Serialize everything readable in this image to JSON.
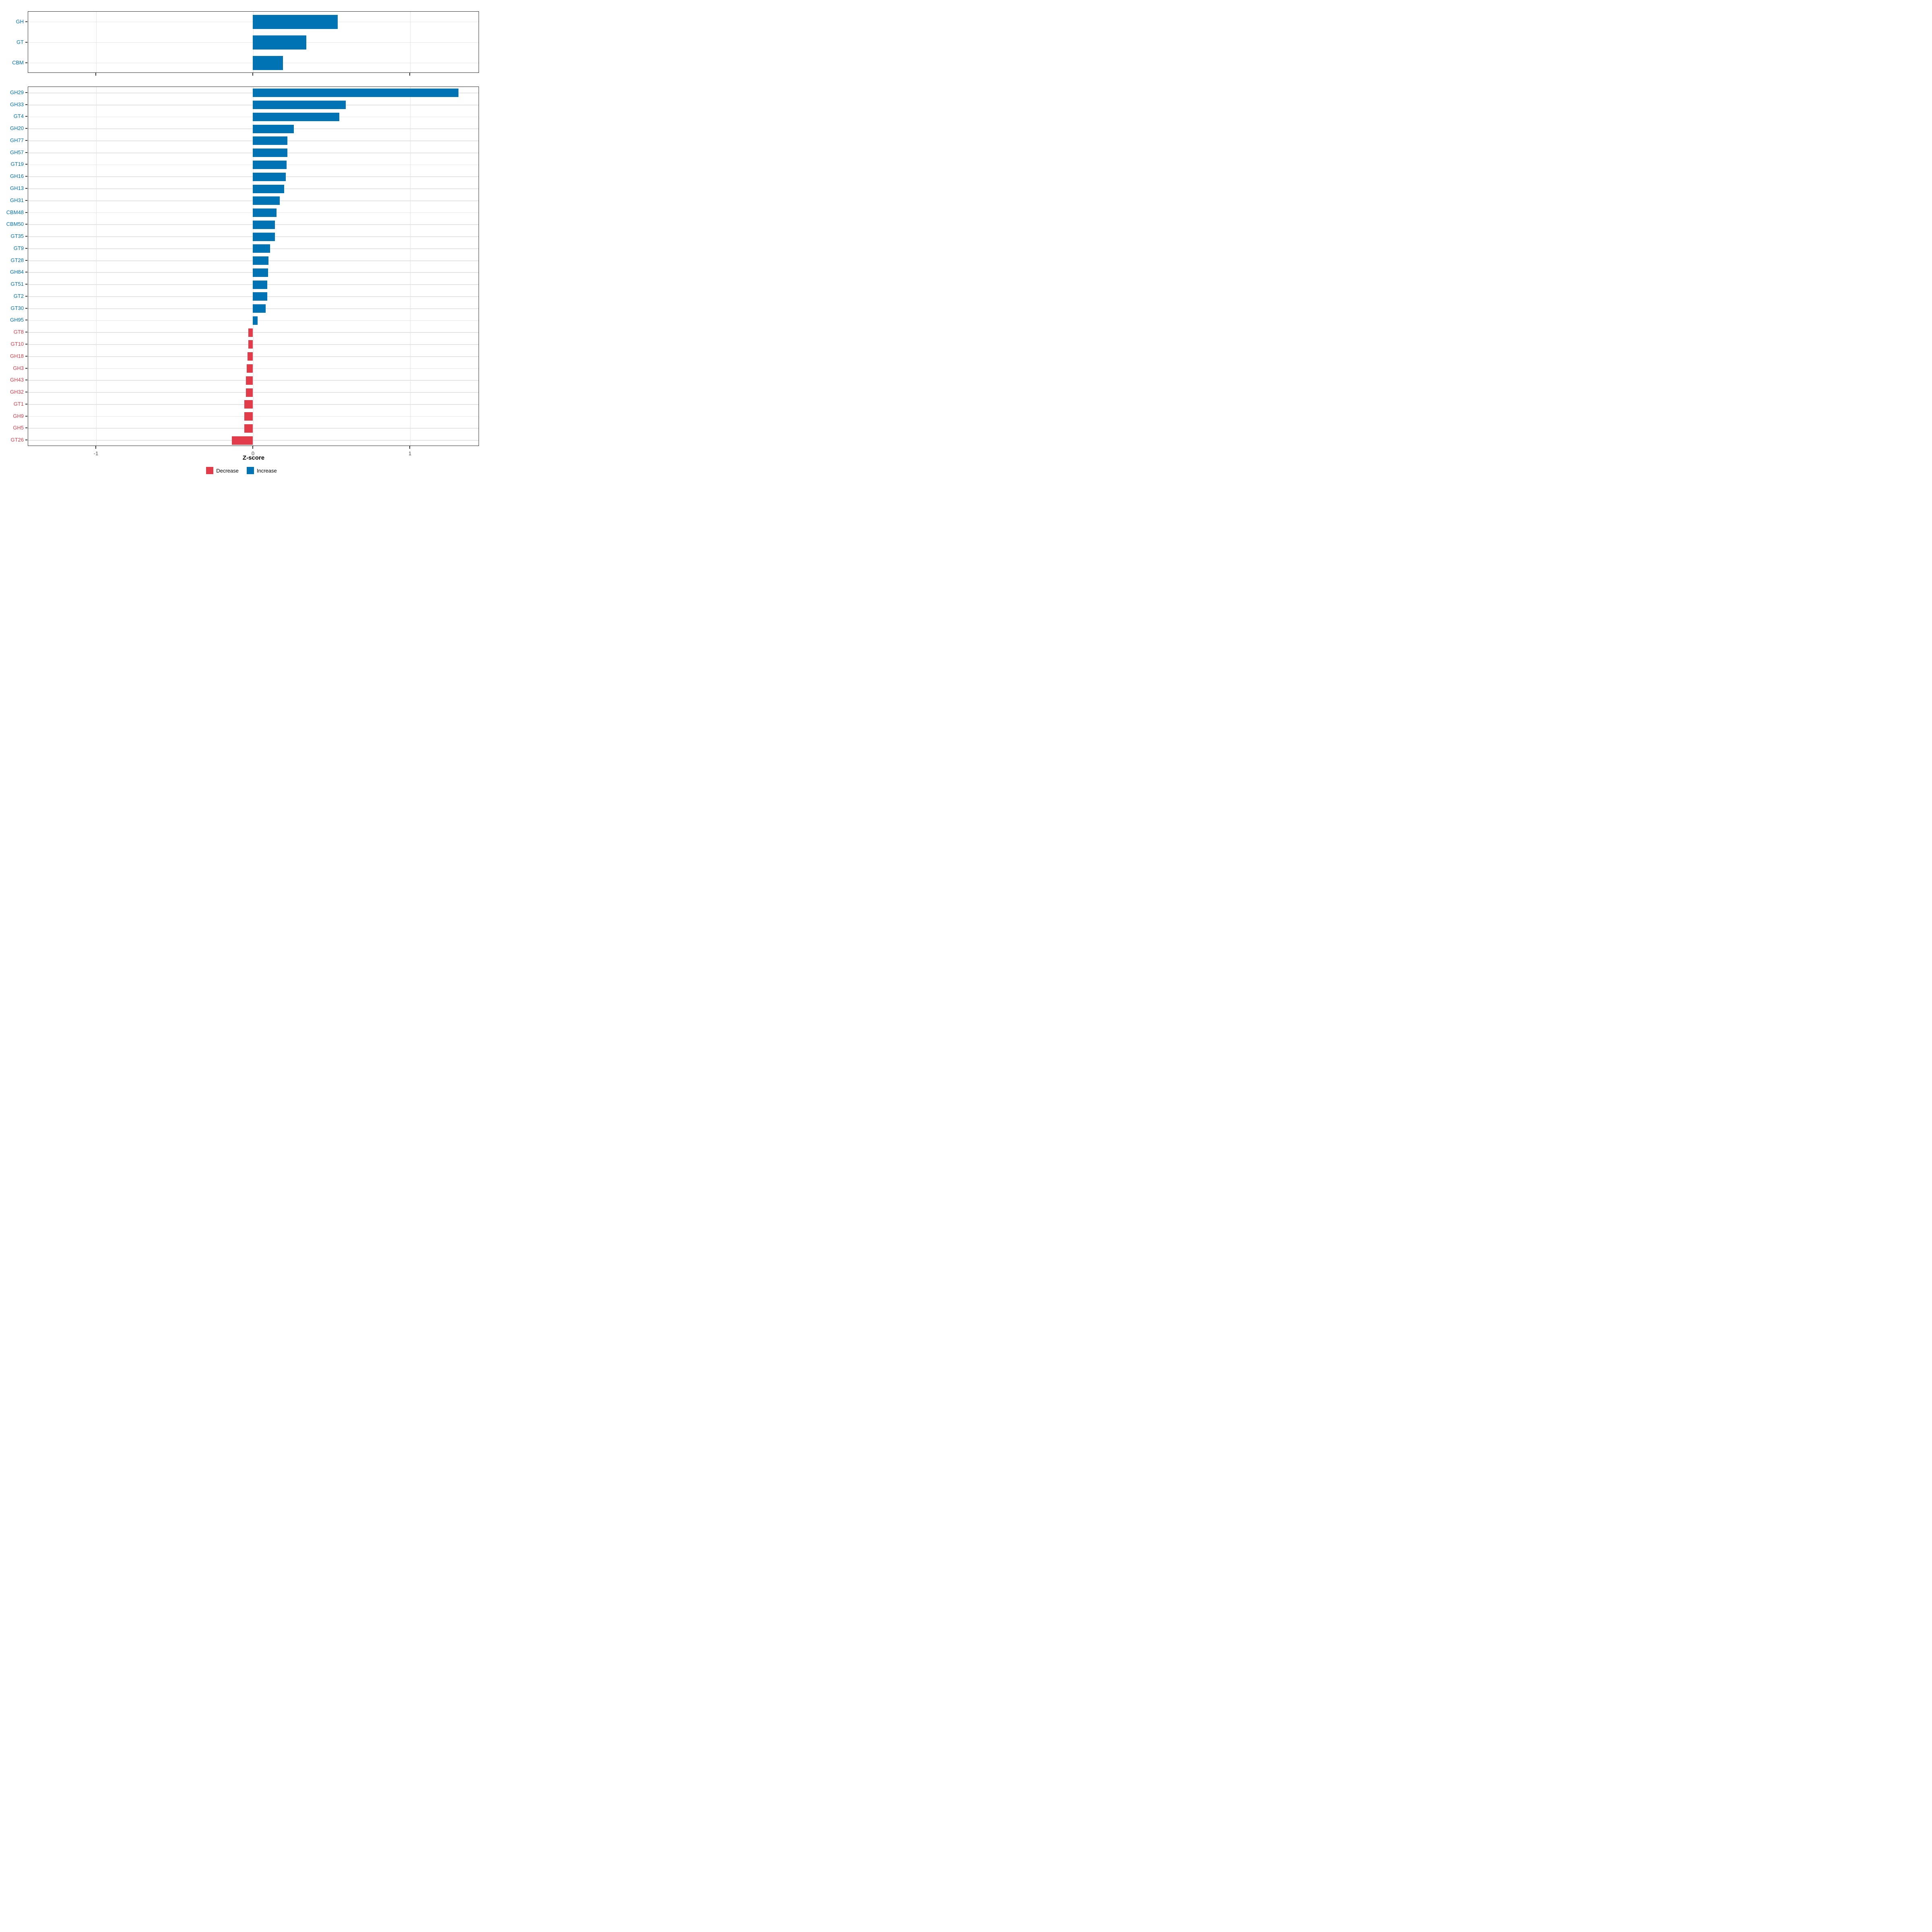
{
  "chart_data": [
    {
      "id": "summary",
      "type": "bar",
      "orientation": "horizontal",
      "categories": [
        "GH",
        "GT",
        "CBM"
      ],
      "values": [
        0.54,
        0.34,
        0.19
      ],
      "directions": [
        "Increase",
        "Increase",
        "Increase"
      ],
      "xlim": [
        -1.45,
        1.45
      ],
      "grid": true,
      "legend_position": "none"
    },
    {
      "id": "families",
      "type": "bar",
      "orientation": "horizontal",
      "categories": [
        "GH29",
        "GH33",
        "GT4",
        "GH20",
        "GH77",
        "GH57",
        "GT19",
        "GH16",
        "GH13",
        "GH31",
        "CBM48",
        "CBM50",
        "GT35",
        "GT9",
        "GT28",
        "GH84",
        "GT51",
        "GT2",
        "GT30",
        "GH95",
        "GT8",
        "GT10",
        "GH18",
        "GH3",
        "GH43",
        "GH32",
        "GT1",
        "GH9",
        "GH5",
        "GT26"
      ],
      "values": [
        1.31,
        0.59,
        0.55,
        0.26,
        0.22,
        0.22,
        0.215,
        0.21,
        0.2,
        0.17,
        0.15,
        0.14,
        0.14,
        0.11,
        0.1,
        0.095,
        0.09,
        0.09,
        0.08,
        0.03,
        -0.03,
        -0.03,
        -0.035,
        -0.04,
        -0.045,
        -0.045,
        -0.055,
        -0.055,
        -0.055,
        -0.135
      ],
      "directions": [
        "Increase",
        "Increase",
        "Increase",
        "Increase",
        "Increase",
        "Increase",
        "Increase",
        "Increase",
        "Increase",
        "Increase",
        "Increase",
        "Increase",
        "Increase",
        "Increase",
        "Increase",
        "Increase",
        "Increase",
        "Increase",
        "Increase",
        "Increase",
        "Decrease",
        "Decrease",
        "Decrease",
        "Decrease",
        "Decrease",
        "Decrease",
        "Decrease",
        "Decrease",
        "Decrease",
        "Decrease"
      ],
      "xlim": [
        -1.45,
        1.45
      ],
      "grid": true,
      "legend_position": "bottom"
    }
  ],
  "axis": {
    "title": "Z-score",
    "ticks": [
      {
        "label": "-1",
        "value": -1
      },
      {
        "label": "0",
        "value": 0
      },
      {
        "label": "1",
        "value": 1
      }
    ]
  },
  "legend": {
    "items": [
      {
        "label": "Decrease",
        "color": "#e23b49"
      },
      {
        "label": "Increase",
        "color": "#0073b5"
      }
    ]
  },
  "colors": {
    "increase": "#0073b5",
    "decrease": "#e23b49",
    "grid": "#e3e3e3",
    "panel_border": "#2e2e2e",
    "tick": "#333333",
    "tick_label": "#4d4d4d",
    "background": "#ffffff"
  }
}
